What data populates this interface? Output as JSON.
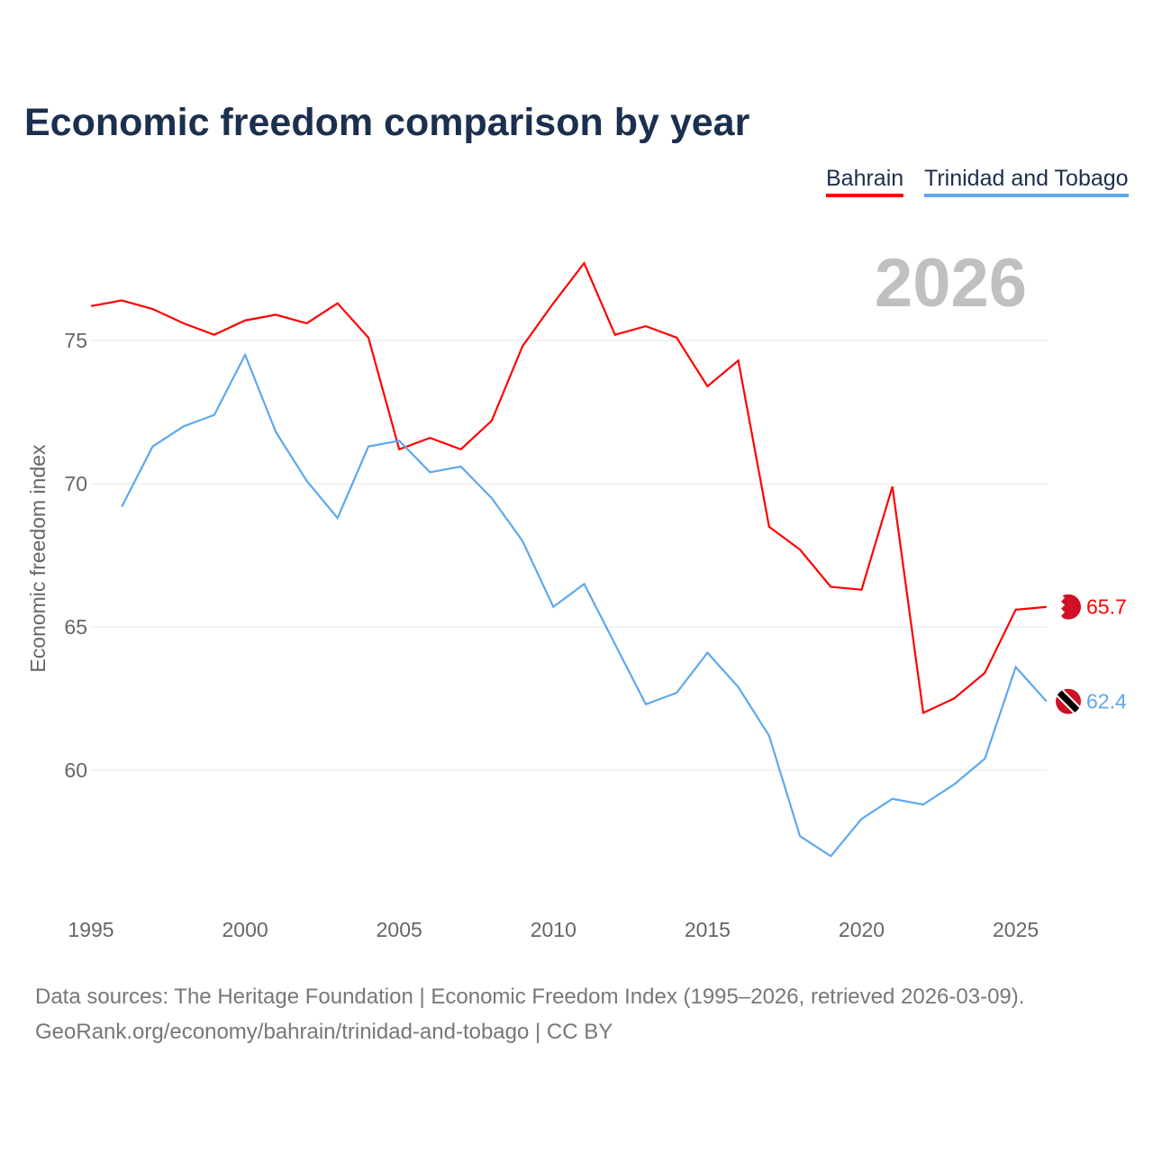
{
  "title": "Economic freedom comparison by year",
  "year_watermark": "2026",
  "footer": {
    "line1": "Data sources: The Heritage Foundation | Economic Freedom Index (1995–2026, retrieved 2026-03-09).",
    "line2": "GeoRank.org/economy/bahrain/trinidad-and-tobago | CC BY"
  },
  "chart_data": {
    "type": "line",
    "title": "Economic freedom comparison by year",
    "xlabel": "",
    "ylabel": "Economic freedom index",
    "xlim": [
      1995,
      2026
    ],
    "ylim": [
      55,
      79
    ],
    "xticks": [
      1995,
      2000,
      2005,
      2010,
      2015,
      2020,
      2025
    ],
    "yticks": [
      60,
      65,
      70,
      75
    ],
    "grid": true,
    "legend": "top-right",
    "series": [
      {
        "name": "Bahrain",
        "color": "#ff0000",
        "end_label": "65.7",
        "x": [
          1995,
          1996,
          1997,
          1998,
          1999,
          2000,
          2001,
          2002,
          2003,
          2004,
          2005,
          2006,
          2007,
          2008,
          2009,
          2010,
          2011,
          2012,
          2013,
          2014,
          2015,
          2016,
          2017,
          2018,
          2019,
          2020,
          2021,
          2022,
          2023,
          2024,
          2025,
          2026
        ],
        "values": [
          76.2,
          76.4,
          76.1,
          75.6,
          75.2,
          75.7,
          75.9,
          75.6,
          76.3,
          75.1,
          71.2,
          71.6,
          71.2,
          72.2,
          74.8,
          76.3,
          77.7,
          75.2,
          75.5,
          75.1,
          73.4,
          74.3,
          68.5,
          67.7,
          66.4,
          66.3,
          69.9,
          62.0,
          62.5,
          63.4,
          65.6,
          65.7
        ]
      },
      {
        "name": "Trinidad and Tobago",
        "color": "#5da8ee",
        "end_label": "62.4",
        "x": [
          1996,
          1997,
          1998,
          1999,
          2000,
          2001,
          2002,
          2003,
          2004,
          2005,
          2006,
          2007,
          2008,
          2009,
          2010,
          2011,
          2012,
          2013,
          2014,
          2015,
          2016,
          2017,
          2018,
          2019,
          2020,
          2021,
          2022,
          2023,
          2024,
          2025,
          2026
        ],
        "values": [
          69.2,
          71.3,
          72.0,
          72.4,
          74.5,
          71.8,
          70.1,
          68.8,
          71.3,
          71.5,
          70.4,
          70.6,
          69.5,
          68.0,
          65.7,
          66.5,
          64.4,
          62.3,
          62.7,
          64.1,
          62.9,
          61.2,
          57.7,
          57.0,
          58.3,
          59.0,
          58.8,
          59.5,
          60.4,
          63.6,
          62.4
        ]
      }
    ]
  }
}
